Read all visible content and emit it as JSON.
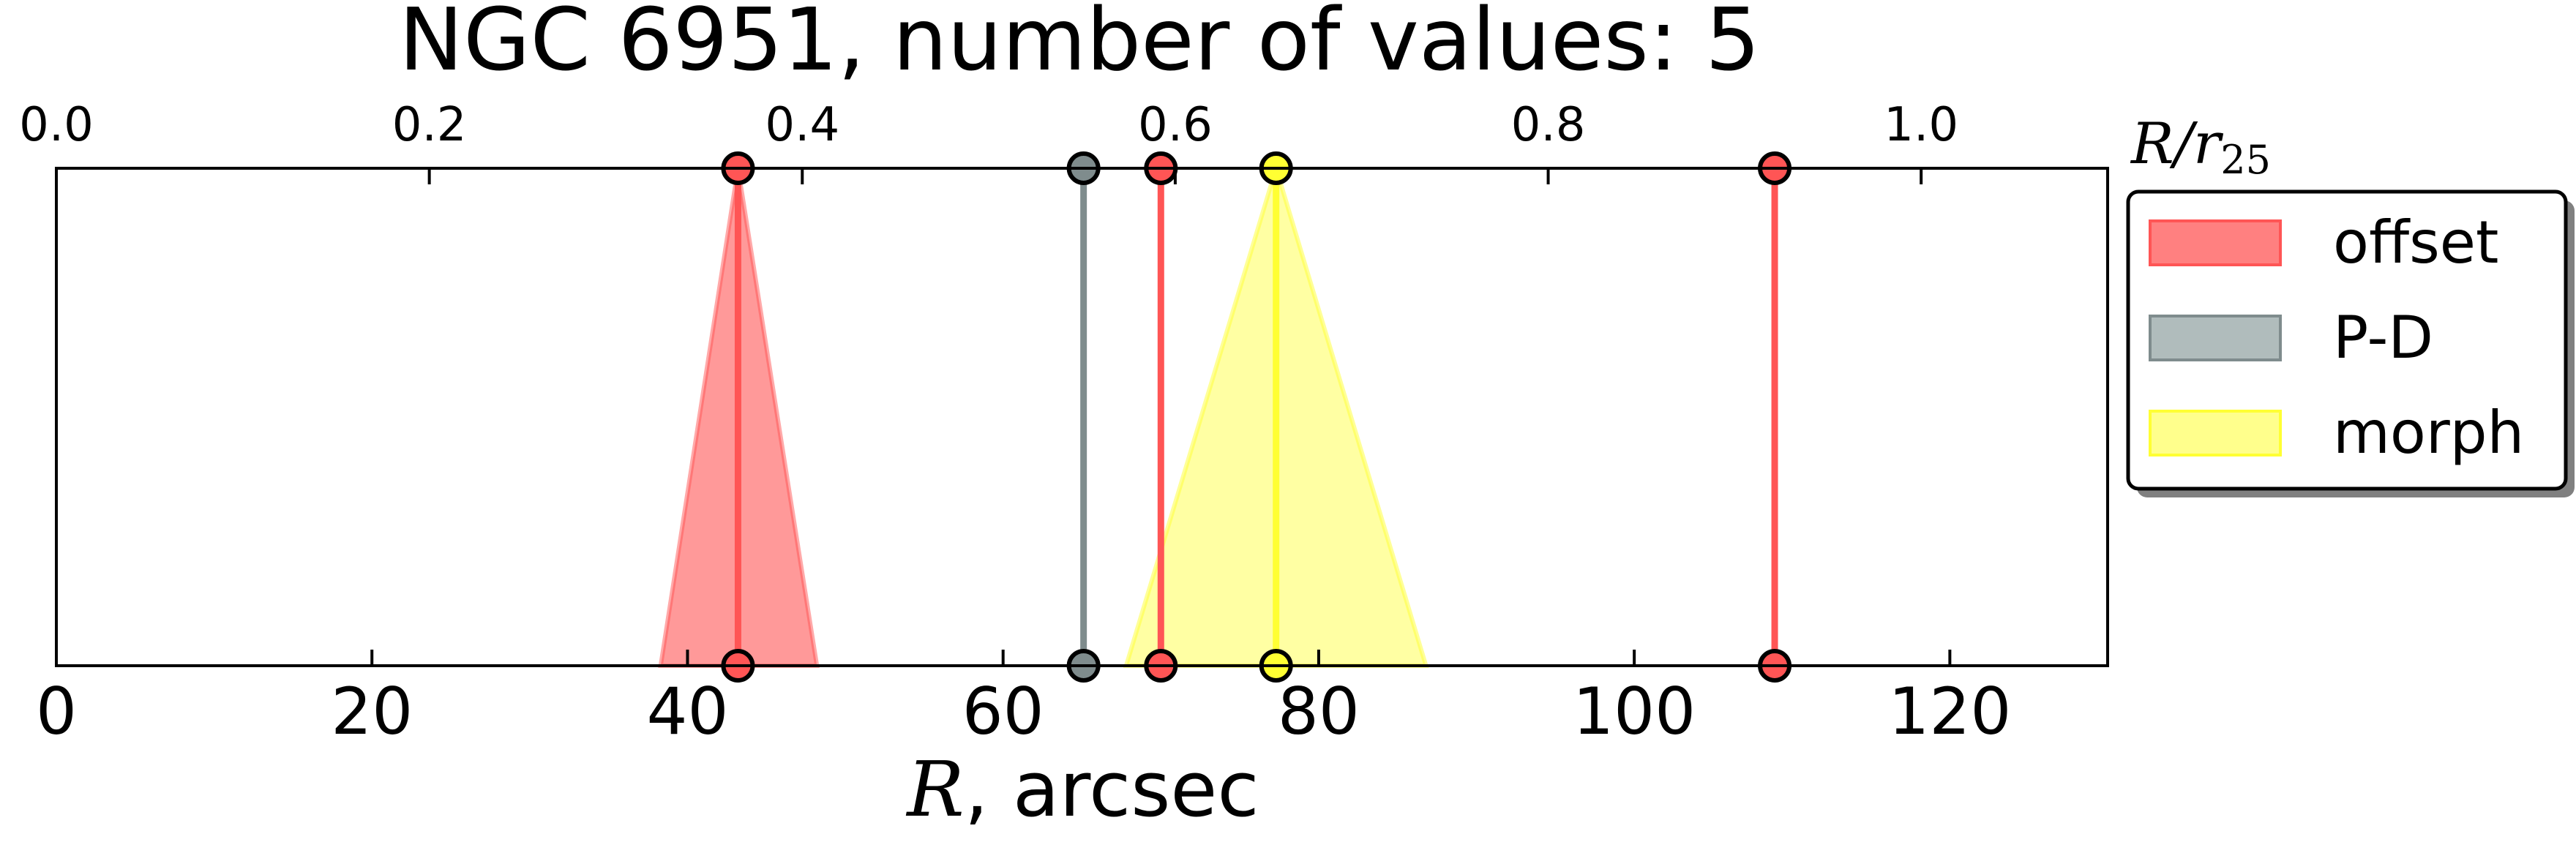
{
  "chart_data": {
    "type": "line",
    "title": "NGC 6951, number of values: 5",
    "xlabel_var": "R",
    "xlabel_rest": ", arcsec",
    "top_axis_label_var": "R/r",
    "top_axis_label_sub": "25",
    "xlim": [
      0,
      130
    ],
    "xticks": [
      0,
      20,
      40,
      60,
      80,
      100,
      120
    ],
    "top_xlim": [
      0.0,
      1.1
    ],
    "top_xticks": [
      0.0,
      0.2,
      0.4,
      0.6,
      0.8,
      1.0
    ],
    "grid": false,
    "legend_position": "right",
    "series": [
      {
        "name": "offset",
        "color": "#ff5555",
        "fill": "#ff5555",
        "lines": [
          43.2,
          70.0,
          108.9
        ],
        "triangles": [
          {
            "peak": 43.2,
            "left": 38.3,
            "right": 48.2
          }
        ]
      },
      {
        "name": "P-D",
        "color": "#7f8c8d",
        "fill": "#95a5a6",
        "lines": [
          65.1
        ],
        "triangles": []
      },
      {
        "name": "morph",
        "color": "#ffff33",
        "fill": "#ffff66",
        "lines": [
          77.3
        ],
        "triangles": [
          {
            "peak": 77.3,
            "left": 67.8,
            "right": 86.8
          }
        ]
      }
    ]
  }
}
